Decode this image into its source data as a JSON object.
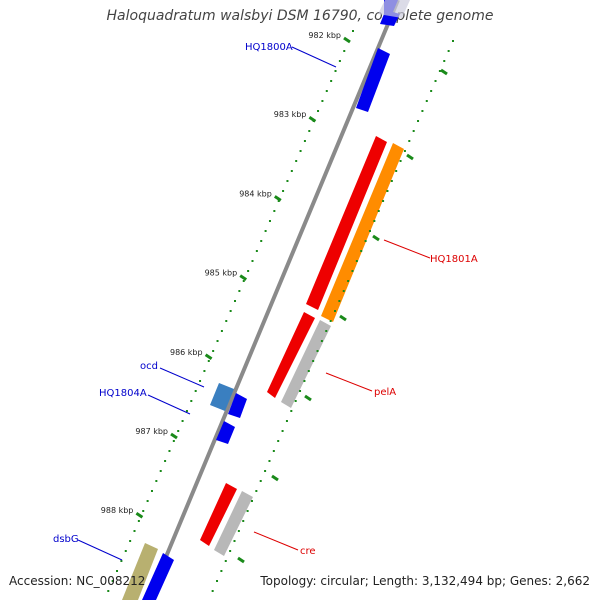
{
  "title": "Haloquadratum walsbyi DSM 16790, complete genome",
  "footer": {
    "accession": "Accession: NC_008212",
    "summary": "Topology: circular; Length: 3,132,494 bp; Genes: 2,662"
  },
  "ticks": [
    {
      "label": "982 kbp",
      "pos": 982
    },
    {
      "label": "983 kbp",
      "pos": 983
    },
    {
      "label": "984 kbp",
      "pos": 984
    },
    {
      "label": "985 kbp",
      "pos": 985
    },
    {
      "label": "986 kbp",
      "pos": 986
    },
    {
      "label": "987 kbp",
      "pos": 987
    },
    {
      "label": "988 kbp",
      "pos": 988
    }
  ],
  "genes": [
    {
      "name": "HQ1800A",
      "track": "inner",
      "start": 981.95,
      "end": 982.4,
      "strand": "+",
      "color": "#0000ee"
    },
    {
      "name": "",
      "track": "inner",
      "start": 981.3,
      "end": 981.85,
      "strand": "+",
      "color": "#0000ee"
    },
    {
      "name": "HQ1801A",
      "track": "cds",
      "start": 983.2,
      "end": 985.45,
      "strand": "-",
      "color": "#ee0000"
    },
    {
      "name": "",
      "track": "outer",
      "start": 983.2,
      "end": 985.45,
      "strand": "-",
      "color": "#ff8c00"
    },
    {
      "name": "pelA",
      "track": "cds",
      "start": 985.5,
      "end": 986.55,
      "strand": "-",
      "color": "#ee0000"
    },
    {
      "name": "",
      "track": "outer",
      "start": 985.5,
      "end": 986.55,
      "strand": "-",
      "color": "#b8b8b8"
    },
    {
      "name": "ocd",
      "track": "inner2",
      "start": 986.38,
      "end": 986.62,
      "strand": "+",
      "color": "#3a7fc0"
    },
    {
      "name": "HQ1804A",
      "track": "inner",
      "start": 986.5,
      "end": 986.72,
      "strand": "+",
      "color": "#0000ee"
    },
    {
      "name": "",
      "track": "inner",
      "start": 986.85,
      "end": 987.05,
      "strand": "+",
      "color": "#0000ee"
    },
    {
      "name": "cre",
      "track": "cds",
      "start": 987.82,
      "end": 988.5,
      "strand": "-",
      "color": "#ee0000"
    },
    {
      "name": "",
      "track": "outer",
      "start": 987.82,
      "end": 988.5,
      "strand": "-",
      "color": "#b8b8b8"
    },
    {
      "name": "dsbG",
      "track": "inner2",
      "start": 988.3,
      "end": 988.75,
      "strand": "+",
      "color": "#b8b070"
    },
    {
      "name": "",
      "track": "inner",
      "start": 988.45,
      "end": 988.9,
      "strand": "+",
      "color": "#0000ee"
    }
  ],
  "labels": [
    {
      "text": "HQ1800A",
      "color": "#0000cc",
      "side": "left"
    },
    {
      "text": "HQ1801A",
      "color": "#dd0000",
      "side": "right"
    },
    {
      "text": "pelA",
      "color": "#dd0000",
      "side": "right"
    },
    {
      "text": "ocd",
      "color": "#0000cc",
      "side": "left"
    },
    {
      "text": "HQ1804A",
      "color": "#0000cc",
      "side": "left"
    },
    {
      "text": "cre",
      "color": "#dd0000",
      "side": "right"
    },
    {
      "text": "dsbG",
      "color": "#0000cc",
      "side": "left"
    }
  ],
  "colors": {
    "backbone": "#8a8a8a",
    "tick": "#1a8a1a",
    "label_line_blue": "#0000cc",
    "label_line_red": "#dd0000"
  }
}
